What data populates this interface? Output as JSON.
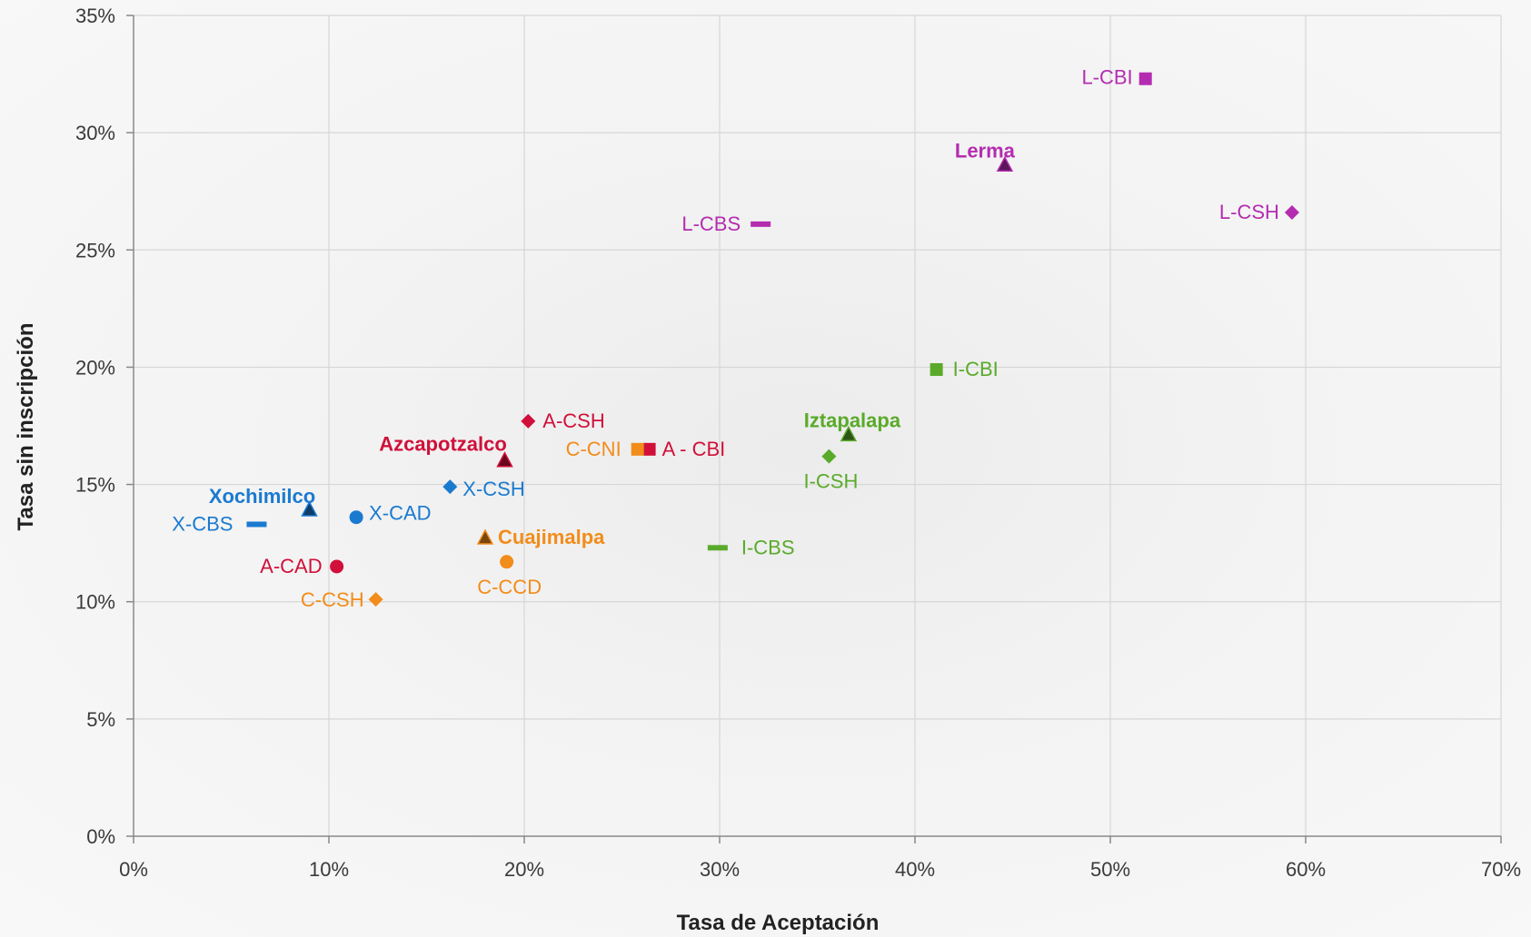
{
  "chart_data": {
    "type": "scatter",
    "title": "",
    "xlabel": "Tasa de Aceptación",
    "ylabel": "Tasa sin inscripción",
    "xlim": [
      0,
      70
    ],
    "ylim": [
      0,
      35
    ],
    "x_ticks": [
      "0%",
      "10%",
      "20%",
      "30%",
      "40%",
      "50%",
      "60%",
      "70%"
    ],
    "y_ticks": [
      "0%",
      "5%",
      "10%",
      "15%",
      "20%",
      "25%",
      "30%",
      "35%"
    ],
    "grid": true,
    "colors": {
      "azcapotzalco": "#d0103a",
      "cuajimalpa": "#f28c1a",
      "iztapalapa": "#5aaa2a",
      "lerma": "#b42cb0",
      "xochimilco": "#1a7ad0"
    },
    "points": [
      {
        "label": "L-CBI",
        "x": 51.8,
        "y": 32.3,
        "marker": "square",
        "color": "#b42cb0",
        "bold": false
      },
      {
        "label": "Lerma",
        "x": 44.6,
        "y": 28.6,
        "marker": "triangle",
        "color": "#b42cb0",
        "bold": true
      },
      {
        "label": "L-CSH",
        "x": 59.3,
        "y": 26.6,
        "marker": "diamond",
        "color": "#b42cb0",
        "bold": false
      },
      {
        "label": "L-CBS",
        "x": 32.1,
        "y": 26.1,
        "marker": "dash",
        "color": "#b42cb0",
        "bold": false
      },
      {
        "label": "I-CBI",
        "x": 41.1,
        "y": 19.9,
        "marker": "square",
        "color": "#5aaa2a",
        "bold": false
      },
      {
        "label": "Iztapalapa",
        "x": 36.6,
        "y": 17.1,
        "marker": "triangle",
        "color": "#5aaa2a",
        "bold": true
      },
      {
        "label": "I-CSH",
        "x": 35.6,
        "y": 16.2,
        "marker": "diamond",
        "color": "#5aaa2a",
        "bold": false
      },
      {
        "label": "I-CBS",
        "x": 29.9,
        "y": 12.3,
        "marker": "dash",
        "color": "#5aaa2a",
        "bold": false
      },
      {
        "label": "A-CSH",
        "x": 20.2,
        "y": 17.7,
        "marker": "diamond",
        "color": "#d0103a",
        "bold": false
      },
      {
        "label": "A - CBI",
        "x": 26.4,
        "y": 16.5,
        "marker": "square",
        "color": "#d0103a",
        "bold": false
      },
      {
        "label": "C-CNI",
        "x": 25.8,
        "y": 16.5,
        "marker": "square",
        "color": "#f28c1a",
        "bold": false
      },
      {
        "label": "Azcapotzalco",
        "x": 19.0,
        "y": 16.0,
        "marker": "triangle",
        "color": "#d0103a",
        "bold": true
      },
      {
        "label": "A-CAD",
        "x": 10.4,
        "y": 11.5,
        "marker": "circle",
        "color": "#d0103a",
        "bold": false
      },
      {
        "label": "X-CSH",
        "x": 16.2,
        "y": 14.9,
        "marker": "diamond",
        "color": "#1a7ad0",
        "bold": false
      },
      {
        "label": "Xochimilco",
        "x": 9.0,
        "y": 13.9,
        "marker": "triangle",
        "color": "#1a7ad0",
        "bold": true
      },
      {
        "label": "X-CAD",
        "x": 11.4,
        "y": 13.6,
        "marker": "circle",
        "color": "#1a7ad0",
        "bold": false
      },
      {
        "label": "X-CBS",
        "x": 6.3,
        "y": 13.3,
        "marker": "dash",
        "color": "#1a7ad0",
        "bold": false
      },
      {
        "label": "Cuajimalpa",
        "x": 18.0,
        "y": 12.7,
        "marker": "triangle",
        "color": "#f28c1a",
        "bold": true
      },
      {
        "label": "C-CCD",
        "x": 19.1,
        "y": 11.7,
        "marker": "circle",
        "color": "#f28c1a",
        "bold": false
      },
      {
        "label": "C-CSH",
        "x": 12.4,
        "y": 10.1,
        "marker": "diamond",
        "color": "#f28c1a",
        "bold": false
      }
    ]
  }
}
